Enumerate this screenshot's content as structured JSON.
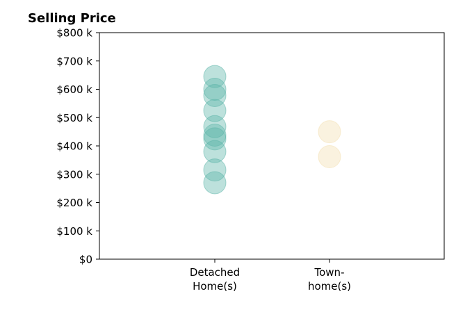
{
  "chart_data": {
    "type": "scatter",
    "title": "Selling Price",
    "xlabel": "",
    "ylabel": "",
    "categories": [
      {
        "label_lines": [
          "Detached",
          "Home(s)"
        ]
      },
      {
        "label_lines": [
          "Town-",
          "home(s)"
        ]
      }
    ],
    "ylim": [
      0,
      800000
    ],
    "y_ticks": [
      {
        "value": 0,
        "label": "$0"
      },
      {
        "value": 100000,
        "label": "$100 k"
      },
      {
        "value": 200000,
        "label": "$200 k"
      },
      {
        "value": 300000,
        "label": "$300 k"
      },
      {
        "value": 400000,
        "label": "$400 k"
      },
      {
        "value": 500000,
        "label": "$500 k"
      },
      {
        "value": 600000,
        "label": "$600 k"
      },
      {
        "value": 700000,
        "label": "$700 k"
      },
      {
        "value": 800000,
        "label": "$800 k"
      }
    ],
    "series": [
      {
        "category_index": 0,
        "color": "#5ab4a8",
        "values": [
          645000,
          600000,
          578000,
          525000,
          468000,
          438000,
          425000,
          380000,
          315000,
          270000
        ]
      },
      {
        "category_index": 1,
        "color": "#f3dfb0",
        "values": [
          450000,
          362000
        ]
      }
    ],
    "grid": false,
    "legend": "none"
  }
}
